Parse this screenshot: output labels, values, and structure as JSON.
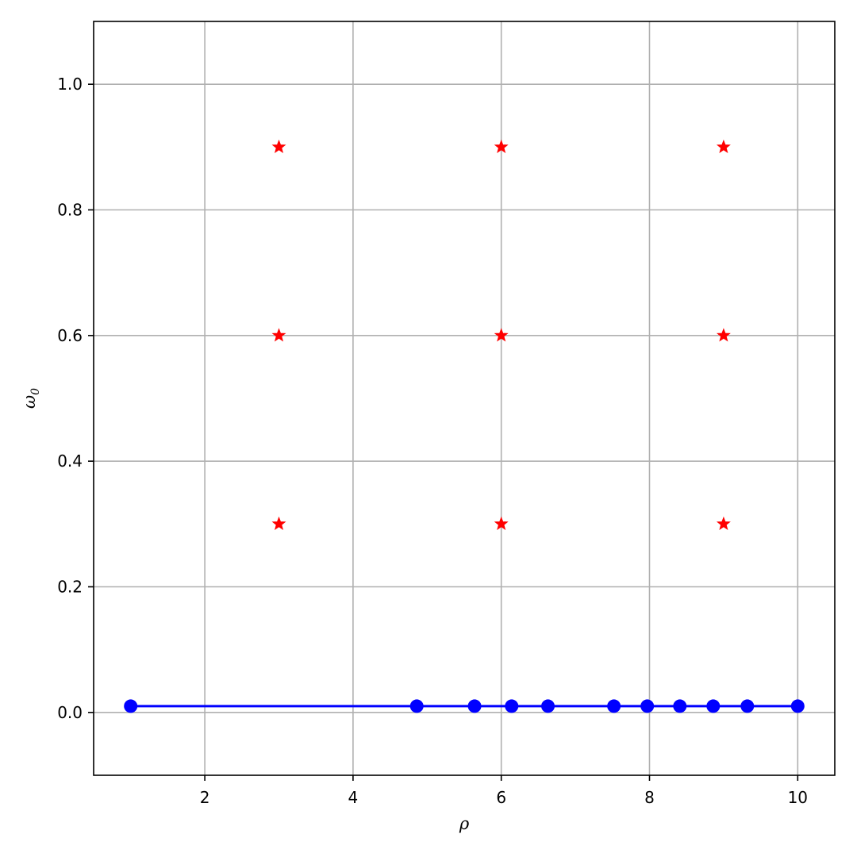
{
  "chart_data": {
    "type": "scatter",
    "xlabel": "ρ",
    "ylabel": "ω",
    "ylabel_subscript": "0",
    "xlim": [
      0.5,
      10.5
    ],
    "ylim": [
      -0.1,
      1.1
    ],
    "xticks": [
      2,
      4,
      6,
      8,
      10
    ],
    "xtick_labels": [
      "2",
      "4",
      "6",
      "8",
      "10"
    ],
    "yticks": [
      0.0,
      0.2,
      0.4,
      0.6,
      0.8,
      1.0
    ],
    "ytick_labels": [
      "0.0",
      "0.2",
      "0.4",
      "0.6",
      "0.8",
      "1.0"
    ],
    "grid": true,
    "series": [
      {
        "marker": "circle",
        "line": true,
        "color": "#0000ff",
        "x": [
          1.0,
          4.86,
          5.64,
          6.14,
          6.63,
          7.52,
          7.97,
          8.41,
          8.86,
          9.32,
          10.0
        ],
        "y": [
          0.01,
          0.01,
          0.01,
          0.01,
          0.01,
          0.01,
          0.01,
          0.01,
          0.01,
          0.01,
          0.01
        ]
      },
      {
        "marker": "star",
        "line": false,
        "color": "#ff0000",
        "x": [
          3,
          3,
          3,
          6,
          6,
          6,
          9,
          9,
          9
        ],
        "y": [
          0.3,
          0.6,
          0.9,
          0.3,
          0.6,
          0.9,
          0.3,
          0.6,
          0.9
        ]
      }
    ]
  }
}
